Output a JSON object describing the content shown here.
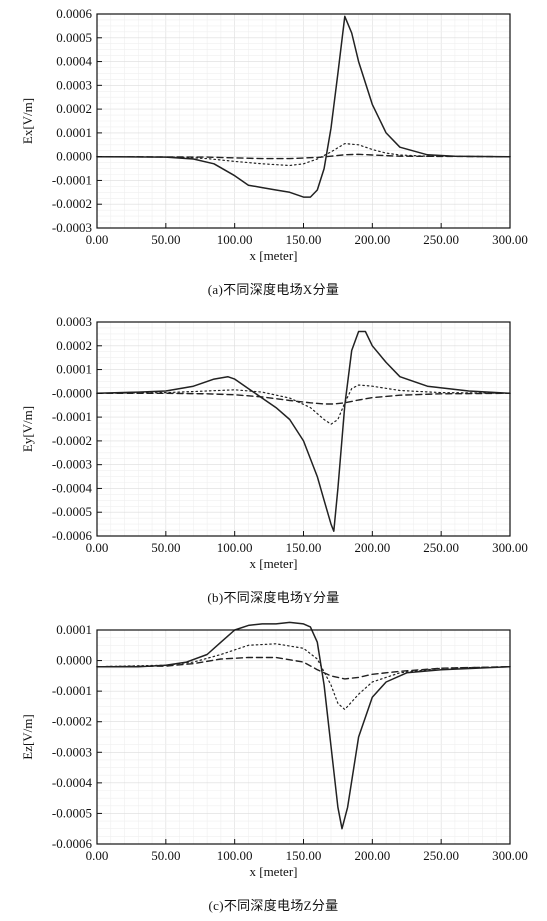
{
  "chart_data": [
    {
      "type": "line",
      "xlabel": "x [meter]",
      "ylabel": "Ex[V/m]",
      "xlim": [
        0,
        300
      ],
      "ylim": [
        -0.0003,
        0.0006
      ],
      "grid": true,
      "xticks": [
        "0.00",
        "50.00",
        "100.00",
        "150.00",
        "200.00",
        "250.00",
        "300.00"
      ],
      "yticks": [
        "-0.0003",
        "-0.0002",
        "-0.0001",
        "0.0000",
        "0.0001",
        "0.0002",
        "0.0003",
        "0.0004",
        "0.0005",
        "0.0006"
      ],
      "caption": "(a)不同深度电场X分量",
      "series": [
        {
          "style": "solid",
          "x": [
            0,
            50,
            70,
            85,
            100,
            110,
            120,
            130,
            140,
            150,
            155,
            160,
            165,
            170,
            175,
            180,
            185,
            190,
            200,
            210,
            220,
            240,
            260,
            300
          ],
          "y": [
            0,
            -2e-06,
            -1e-05,
            -3e-05,
            -8e-05,
            -0.00012,
            -0.00013,
            -0.00014,
            -0.00015,
            -0.00017,
            -0.00017,
            -0.00014,
            -5e-05,
            0.00012,
            0.00035,
            0.00059,
            0.00052,
            0.0004,
            0.00022,
            0.0001,
            4e-05,
            8e-06,
            2e-06,
            0
          ]
        },
        {
          "style": "dotted",
          "x": [
            0,
            60,
            80,
            100,
            120,
            140,
            150,
            160,
            170,
            180,
            190,
            200,
            210,
            220,
            240,
            300
          ],
          "y": [
            0,
            -2e-06,
            -8e-06,
            -2e-05,
            -3e-05,
            -3.7e-05,
            -3e-05,
            -1e-05,
            2e-05,
            5.5e-05,
            5e-05,
            3e-05,
            1.5e-05,
            7e-06,
            2e-06,
            0
          ]
        },
        {
          "style": "dashed",
          "x": [
            0,
            80,
            100,
            120,
            140,
            160,
            170,
            180,
            190,
            200,
            220,
            300
          ],
          "y": [
            0,
            -2e-06,
            -5e-06,
            -8e-06,
            -8e-06,
            -3e-06,
            2e-06,
            8e-06,
            1e-05,
            7e-06,
            2e-06,
            0
          ]
        }
      ]
    },
    {
      "type": "line",
      "xlabel": "x [meter]",
      "ylabel": "Ey[V/m]",
      "xlim": [
        0,
        300
      ],
      "ylim": [
        -0.0006,
        0.0003
      ],
      "grid": true,
      "xticks": [
        "0.00",
        "50.00",
        "100.00",
        "150.00",
        "200.00",
        "250.00",
        "300.00"
      ],
      "yticks": [
        "-0.0006",
        "-0.0005",
        "-0.0004",
        "-0.0003",
        "-0.0002",
        "-0.0001",
        "-0.0000",
        "0.0001",
        "0.0002",
        "0.0003"
      ],
      "caption": "(b)不同深度电场Y分量",
      "series": [
        {
          "style": "solid",
          "x": [
            0,
            30,
            50,
            70,
            85,
            95,
            100,
            110,
            120,
            130,
            140,
            150,
            160,
            165,
            170,
            172,
            175,
            180,
            185,
            190,
            195,
            200,
            210,
            220,
            240,
            270,
            300
          ],
          "y": [
            0,
            5e-06,
            1e-05,
            3e-05,
            6e-05,
            7e-05,
            6e-05,
            2e-05,
            -2e-05,
            -6e-05,
            -0.00011,
            -0.0002,
            -0.00035,
            -0.00045,
            -0.00055,
            -0.00058,
            -0.0004,
            -5e-05,
            0.00018,
            0.00026,
            0.00026,
            0.0002,
            0.00013,
            7e-05,
            3e-05,
            1e-05,
            0
          ]
        },
        {
          "style": "dotted",
          "x": [
            0,
            50,
            80,
            100,
            120,
            140,
            155,
            165,
            170,
            175,
            180,
            185,
            190,
            200,
            220,
            250,
            300
          ],
          "y": [
            0,
            3e-06,
            1e-05,
            1.5e-05,
            5e-06,
            -2e-05,
            -6e-05,
            -0.00011,
            -0.00013,
            -0.00011,
            -4e-05,
            2e-05,
            3.5e-05,
            3e-05,
            1.2e-05,
            3e-06,
            0
          ]
        },
        {
          "style": "dashed",
          "x": [
            0,
            50,
            80,
            100,
            120,
            140,
            155,
            165,
            172,
            180,
            190,
            200,
            220,
            250,
            300
          ],
          "y": [
            0,
            0,
            -2e-06,
            -6e-06,
            -1.5e-05,
            -3e-05,
            -4e-05,
            -4.5e-05,
            -4.5e-05,
            -4e-05,
            -2.8e-05,
            -1.8e-05,
            -8e-06,
            -2e-06,
            0
          ]
        }
      ]
    },
    {
      "type": "line",
      "xlabel": "x [meter]",
      "ylabel": "Ez[V/m]",
      "xlim": [
        0,
        300
      ],
      "ylim": [
        -0.0006,
        0.0001
      ],
      "grid": true,
      "xticks": [
        "0.00",
        "50.00",
        "100.00",
        "150.00",
        "200.00",
        "250.00",
        "300.00"
      ],
      "yticks": [
        "-0.0006",
        "-0.0005",
        "-0.0004",
        "-0.0003",
        "-0.0002",
        "-0.0001",
        "0.0000",
        "0.0001"
      ],
      "caption": "(c)不同深度电场Z分量",
      "series": [
        {
          "style": "solid",
          "x": [
            0,
            30,
            50,
            65,
            80,
            90,
            100,
            110,
            120,
            130,
            140,
            150,
            155,
            160,
            165,
            170,
            175,
            178,
            182,
            190,
            200,
            210,
            225,
            250,
            275,
            300
          ],
          "y": [
            -2e-05,
            -2e-05,
            -1.5e-05,
            -5e-06,
            2e-05,
            6e-05,
            0.0001,
            0.000115,
            0.00012,
            0.00012,
            0.000125,
            0.00012,
            0.00011,
            6e-05,
            -8e-05,
            -0.00028,
            -0.00048,
            -0.00055,
            -0.00048,
            -0.00025,
            -0.00012,
            -7e-05,
            -4e-05,
            -3e-05,
            -2.5e-05,
            -2e-05
          ]
        },
        {
          "style": "dotted",
          "x": [
            0,
            50,
            70,
            90,
            110,
            130,
            150,
            160,
            170,
            175,
            180,
            190,
            200,
            220,
            250,
            300
          ],
          "y": [
            -2e-05,
            -1.5e-05,
            -5e-06,
            2e-05,
            5e-05,
            5.5e-05,
            4e-05,
            5e-06,
            -8e-05,
            -0.00014,
            -0.00016,
            -0.00011,
            -7e-05,
            -4e-05,
            -2.5e-05,
            -2e-05
          ]
        },
        {
          "style": "dashed",
          "x": [
            0,
            50,
            70,
            90,
            110,
            130,
            150,
            160,
            170,
            180,
            190,
            200,
            220,
            250,
            300
          ],
          "y": [
            -2e-05,
            -1.8e-05,
            -1e-05,
            5e-06,
            1e-05,
            1e-05,
            -5e-06,
            -3e-05,
            -5e-05,
            -6e-05,
            -5.5e-05,
            -4.5e-05,
            -3.5e-05,
            -2.5e-05,
            -2e-05
          ]
        }
      ]
    }
  ]
}
